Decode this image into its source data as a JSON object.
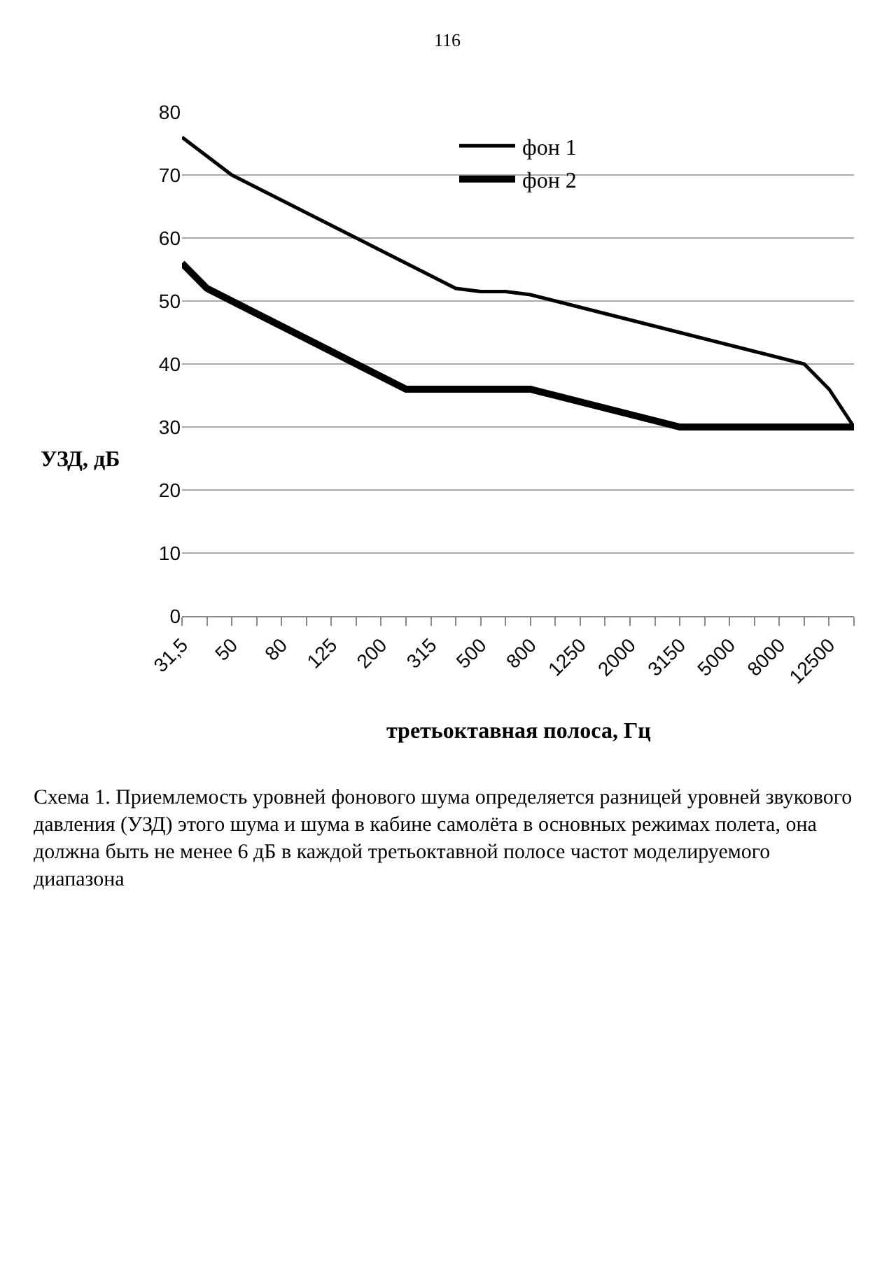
{
  "chart_data": {
    "type": "line",
    "xlabel": "третьоктавная полоса, Гц",
    "ylabel": "УЗД, дБ",
    "categories": [
      "31,5",
      null,
      "50",
      null,
      "80",
      null,
      "125",
      null,
      "200",
      null,
      "315",
      null,
      "500",
      null,
      "800",
      null,
      "1250",
      null,
      "2000",
      null,
      "3150",
      null,
      "5000",
      null,
      "8000",
      null,
      "12500",
      null
    ],
    "series": [
      {
        "name": "фон 1",
        "color": "#000000",
        "values": [
          76,
          73,
          70,
          68,
          66,
          64,
          62,
          60,
          58,
          56,
          54,
          52,
          51.5,
          51.5,
          51,
          50,
          49,
          48,
          47,
          46,
          45,
          44,
          43,
          42,
          41,
          40,
          36,
          30
        ]
      },
      {
        "name": "фон 2",
        "color": "#000000",
        "values": [
          56,
          52,
          50,
          48,
          46,
          44,
          42,
          40,
          38,
          36,
          36,
          36,
          36,
          36,
          36,
          35,
          34,
          33,
          32,
          31,
          30,
          30,
          30,
          30,
          30,
          30,
          30,
          30
        ]
      }
    ],
    "ylim": [
      0,
      80
    ],
    "yticks": [
      0,
      10,
      20,
      30,
      40,
      50,
      60,
      70,
      80
    ],
    "grid": "y",
    "legend": "top",
    "marker": "none",
    "line_style": "solid",
    "annotations": [
      "116",
      "Схема 1. Приемлемость уровней фонового шума определяется разницей уровней звукового давления (УЗД) этого шума и шума в кабине самолёта в основных режимах полета, она должна быть не менее 6 дБ в каждой третьоктавной полосе частот моделируемого диапазона"
    ]
  }
}
